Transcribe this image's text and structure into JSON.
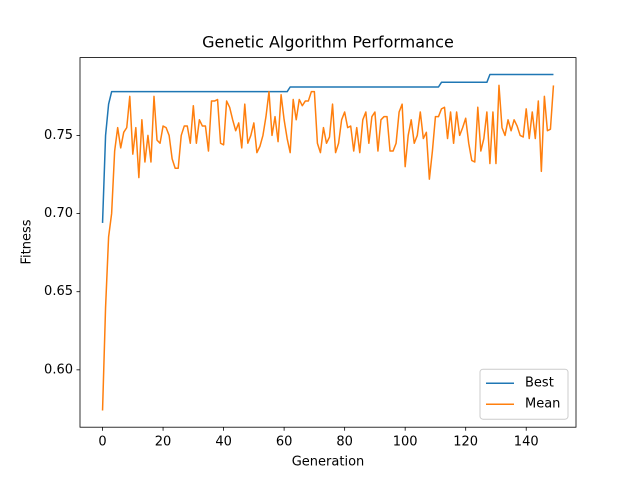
{
  "chart_data": {
    "type": "line",
    "title": "Genetic Algorithm Performance",
    "x_label": "Generation",
    "y_label": "Fitness",
    "x": [
      0,
      1,
      2,
      3,
      4,
      5,
      6,
      7,
      8,
      9,
      10,
      11,
      12,
      13,
      14,
      15,
      16,
      17,
      18,
      19,
      20,
      21,
      22,
      23,
      24,
      25,
      26,
      27,
      28,
      29,
      30,
      31,
      32,
      33,
      34,
      35,
      36,
      37,
      38,
      39,
      40,
      41,
      42,
      43,
      44,
      45,
      46,
      47,
      48,
      49,
      50,
      51,
      52,
      53,
      54,
      55,
      56,
      57,
      58,
      59,
      60,
      61,
      62,
      63,
      64,
      65,
      66,
      67,
      68,
      69,
      70,
      71,
      72,
      73,
      74,
      75,
      76,
      77,
      78,
      79,
      80,
      81,
      82,
      83,
      84,
      85,
      86,
      87,
      88,
      89,
      90,
      91,
      92,
      93,
      94,
      95,
      96,
      97,
      98,
      99,
      100,
      101,
      102,
      103,
      104,
      105,
      106,
      107,
      108,
      109,
      110,
      111,
      112,
      113,
      114,
      115,
      116,
      117,
      118,
      119,
      120,
      121,
      122,
      123,
      124,
      125,
      126,
      127,
      128,
      129,
      130,
      131,
      132,
      133,
      134,
      135,
      136,
      137,
      138,
      139,
      140,
      141,
      142,
      143,
      144,
      145,
      146,
      147,
      148,
      149
    ],
    "series": [
      {
        "name": "Best",
        "color": "#1f77b4",
        "values": [
          0.694,
          0.75,
          0.77,
          0.778,
          0.778,
          0.778,
          0.778,
          0.778,
          0.778,
          0.778,
          0.778,
          0.778,
          0.778,
          0.778,
          0.778,
          0.778,
          0.778,
          0.778,
          0.778,
          0.778,
          0.778,
          0.778,
          0.778,
          0.778,
          0.778,
          0.778,
          0.778,
          0.778,
          0.778,
          0.778,
          0.778,
          0.778,
          0.778,
          0.778,
          0.778,
          0.778,
          0.778,
          0.778,
          0.778,
          0.778,
          0.778,
          0.778,
          0.778,
          0.778,
          0.778,
          0.778,
          0.778,
          0.778,
          0.778,
          0.778,
          0.778,
          0.778,
          0.778,
          0.778,
          0.778,
          0.778,
          0.778,
          0.778,
          0.778,
          0.778,
          0.778,
          0.778,
          0.781,
          0.781,
          0.781,
          0.781,
          0.781,
          0.781,
          0.781,
          0.781,
          0.781,
          0.781,
          0.781,
          0.781,
          0.781,
          0.781,
          0.781,
          0.781,
          0.781,
          0.781,
          0.781,
          0.781,
          0.781,
          0.781,
          0.781,
          0.781,
          0.781,
          0.781,
          0.781,
          0.781,
          0.781,
          0.781,
          0.781,
          0.781,
          0.781,
          0.781,
          0.781,
          0.781,
          0.781,
          0.781,
          0.781,
          0.781,
          0.781,
          0.781,
          0.781,
          0.781,
          0.781,
          0.781,
          0.781,
          0.781,
          0.781,
          0.781,
          0.784,
          0.784,
          0.784,
          0.784,
          0.784,
          0.784,
          0.784,
          0.784,
          0.784,
          0.784,
          0.784,
          0.784,
          0.784,
          0.784,
          0.784,
          0.784,
          0.789,
          0.789,
          0.789,
          0.789,
          0.789,
          0.789,
          0.789,
          0.789,
          0.789,
          0.789,
          0.789,
          0.789,
          0.789,
          0.789,
          0.789,
          0.789,
          0.789,
          0.789,
          0.789,
          0.789,
          0.789,
          0.789
        ]
      },
      {
        "name": "Mean",
        "color": "#ff7f0e",
        "values": [
          0.574,
          0.64,
          0.685,
          0.7,
          0.74,
          0.755,
          0.742,
          0.752,
          0.755,
          0.775,
          0.738,
          0.755,
          0.723,
          0.76,
          0.733,
          0.75,
          0.733,
          0.775,
          0.747,
          0.745,
          0.756,
          0.755,
          0.75,
          0.735,
          0.729,
          0.729,
          0.75,
          0.756,
          0.756,
          0.745,
          0.769,
          0.745,
          0.76,
          0.756,
          0.756,
          0.74,
          0.772,
          0.772,
          0.773,
          0.745,
          0.744,
          0.772,
          0.768,
          0.76,
          0.753,
          0.758,
          0.742,
          0.77,
          0.745,
          0.75,
          0.758,
          0.739,
          0.743,
          0.75,
          0.762,
          0.778,
          0.75,
          0.762,
          0.746,
          0.776,
          0.76,
          0.748,
          0.739,
          0.773,
          0.76,
          0.773,
          0.769,
          0.772,
          0.772,
          0.778,
          0.778,
          0.745,
          0.739,
          0.755,
          0.745,
          0.749,
          0.77,
          0.739,
          0.745,
          0.76,
          0.765,
          0.755,
          0.756,
          0.74,
          0.755,
          0.739,
          0.76,
          0.765,
          0.745,
          0.762,
          0.765,
          0.74,
          0.76,
          0.762,
          0.762,
          0.74,
          0.74,
          0.745,
          0.765,
          0.77,
          0.73,
          0.75,
          0.76,
          0.745,
          0.75,
          0.765,
          0.748,
          0.752,
          0.722,
          0.74,
          0.762,
          0.762,
          0.767,
          0.768,
          0.748,
          0.765,
          0.745,
          0.765,
          0.75,
          0.755,
          0.761,
          0.745,
          0.734,
          0.733,
          0.768,
          0.74,
          0.748,
          0.765,
          0.732,
          0.765,
          0.732,
          0.782,
          0.755,
          0.75,
          0.76,
          0.753,
          0.76,
          0.756,
          0.75,
          0.749,
          0.767,
          0.748,
          0.765,
          0.748,
          0.772,
          0.727,
          0.775,
          0.753,
          0.754,
          0.782
        ]
      }
    ],
    "xlim": [
      -7.45,
      156.45
    ],
    "xticks": [
      0,
      20,
      40,
      60,
      80,
      100,
      120,
      140
    ],
    "ylim": [
      0.5633,
      0.7998
    ],
    "yticks": [
      {
        "value": 0.6,
        "label": "0.60"
      },
      0.65,
      {
        "value": 0.7,
        "label": "0.70"
      },
      0.75
    ],
    "grid": false,
    "legend": "lower right"
  }
}
